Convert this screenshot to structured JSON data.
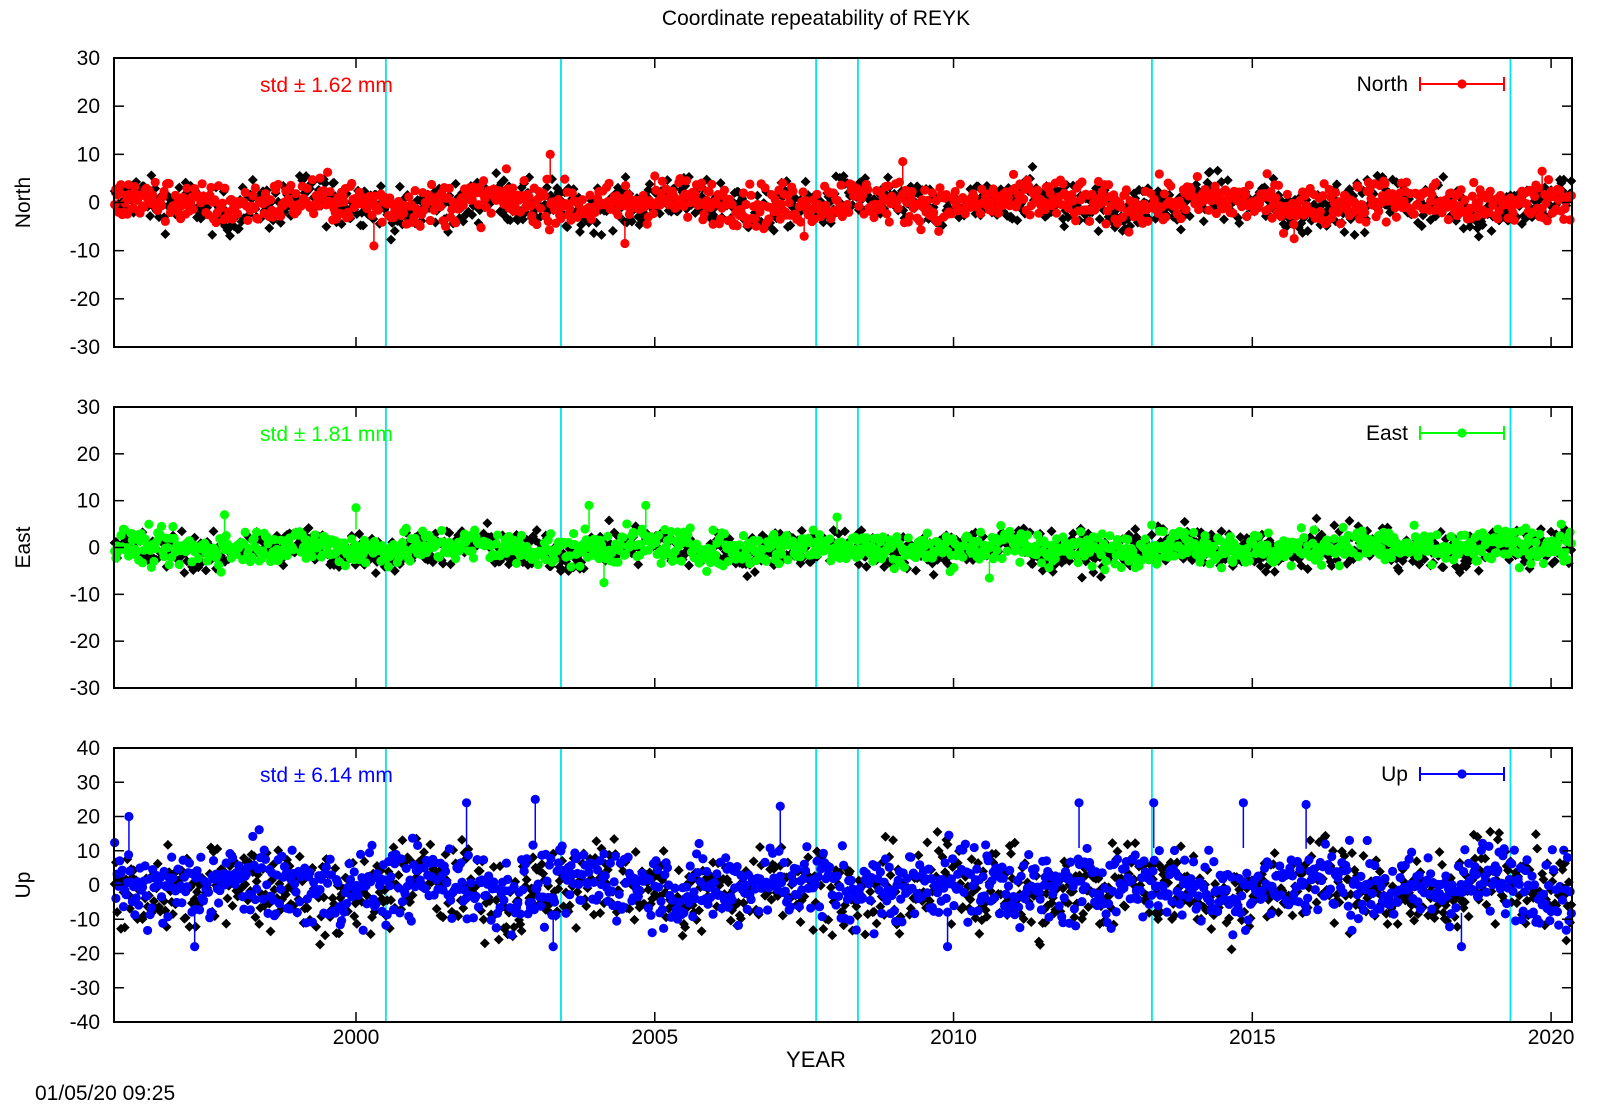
{
  "title": "Coordinate repeatability of REYK",
  "timestamp": "01/05/20 09:25",
  "chart_data": {
    "type": "scatter",
    "title": "Coordinate repeatability of REYK",
    "xlabel": "YEAR",
    "xlim": [
      1995.95,
      2020.35
    ],
    "xticks": [
      2000,
      2005,
      2010,
      2015,
      2020
    ],
    "grid": false,
    "legend_placement": "top-right",
    "event_lines": [
      2000.5,
      2003.43,
      2007.7,
      2008.4,
      2013.32,
      2019.32
    ],
    "event_line_color": "#00e5ee",
    "panels": [
      {
        "name": "North",
        "ylabel": "North",
        "ylim": [
          -30,
          30
        ],
        "yticks": [
          -30,
          -20,
          -10,
          0,
          10,
          20,
          30
        ],
        "std_label": "std ± 1.62 mm",
        "legend": "North",
        "color": "#ff0000",
        "amplitude_mm": 2.6,
        "outliers": [
          {
            "x": 2003.25,
            "y": 10
          },
          {
            "x": 2004.5,
            "y": -8.5
          },
          {
            "x": 2009.15,
            "y": 8.5
          },
          {
            "x": 2000.3,
            "y": -9
          },
          {
            "x": 2015.7,
            "y": -7.5
          },
          {
            "x": 2007.5,
            "y": -7
          },
          {
            "x": 2005.0,
            "y": 5.5
          },
          {
            "x": 2019.85,
            "y": 6.5
          }
        ]
      },
      {
        "name": "East",
        "ylabel": "East",
        "ylim": [
          -30,
          30
        ],
        "yticks": [
          -30,
          -20,
          -10,
          0,
          10,
          20,
          30
        ],
        "std_label": "std ± 1.81 mm",
        "legend": "East",
        "color": "#00ff00",
        "amplitude_mm": 2.2,
        "outliers": [
          {
            "x": 2003.9,
            "y": 9
          },
          {
            "x": 2004.85,
            "y": 9
          },
          {
            "x": 1997.8,
            "y": 7
          },
          {
            "x": 2008.05,
            "y": 6.5
          },
          {
            "x": 2004.15,
            "y": -7.5
          },
          {
            "x": 2010.6,
            "y": -6.5
          },
          {
            "x": 2000.0,
            "y": 8.5
          }
        ]
      },
      {
        "name": "Up",
        "ylabel": "Up",
        "ylim": [
          -40,
          40
        ],
        "yticks": [
          -40,
          -30,
          -20,
          -10,
          0,
          10,
          20,
          30,
          40
        ],
        "std_label": "std ± 6.14 mm",
        "legend": "Up",
        "color": "#0000ff",
        "amplitude_mm": 6.5,
        "outliers": [
          {
            "x": 2003.0,
            "y": 25
          },
          {
            "x": 2001.85,
            "y": 24
          },
          {
            "x": 2013.35,
            "y": 24
          },
          {
            "x": 2014.85,
            "y": 24
          },
          {
            "x": 2012.1,
            "y": 24
          },
          {
            "x": 1996.2,
            "y": 20
          },
          {
            "x": 2007.1,
            "y": 23
          },
          {
            "x": 2015.9,
            "y": 23.5
          },
          {
            "x": 2018.5,
            "y": -18
          },
          {
            "x": 1997.3,
            "y": -18
          },
          {
            "x": 2003.3,
            "y": -18
          },
          {
            "x": 2009.9,
            "y": -18
          }
        ]
      }
    ]
  }
}
